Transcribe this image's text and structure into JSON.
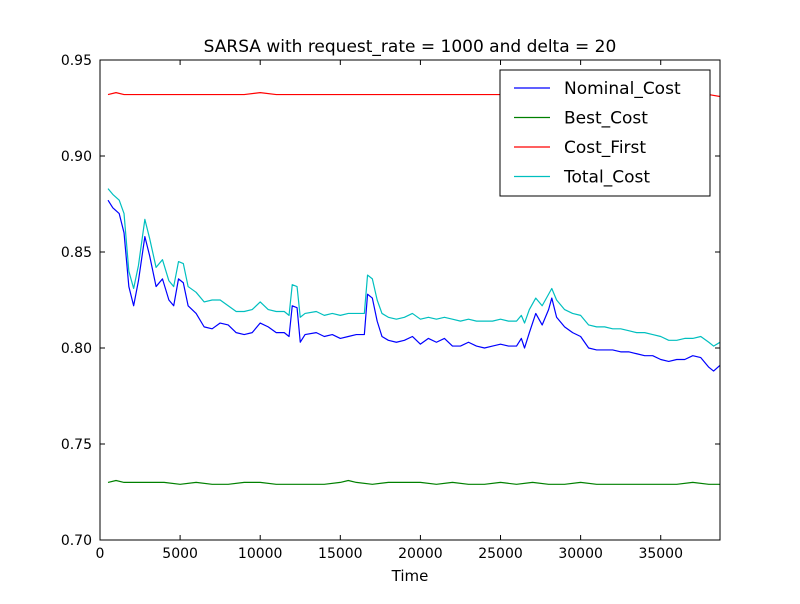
{
  "chart_data": {
    "type": "line",
    "title": "SARSA with request_rate = 1000 and delta = 20",
    "xlabel": "Time",
    "ylabel": "",
    "xlim": [
      0,
      38700
    ],
    "ylim": [
      0.7,
      0.95
    ],
    "x_ticks": [
      0,
      5000,
      10000,
      15000,
      20000,
      25000,
      30000,
      35000
    ],
    "y_ticks": [
      0.7,
      0.75,
      0.8,
      0.85,
      0.9,
      0.95
    ],
    "x_tick_labels": [
      "0",
      "5000",
      "10000",
      "15000",
      "20000",
      "25000",
      "30000",
      "35000"
    ],
    "y_tick_labels": [
      "0.70",
      "0.75",
      "0.80",
      "0.85",
      "0.90",
      "0.95"
    ],
    "grid": false,
    "legend_position": "top-right",
    "series": [
      {
        "name": "Nominal_Cost",
        "color": "#0000ff",
        "points": [
          [
            500,
            0.877
          ],
          [
            800,
            0.873
          ],
          [
            1200,
            0.87
          ],
          [
            1500,
            0.86
          ],
          [
            1800,
            0.832
          ],
          [
            2100,
            0.822
          ],
          [
            2400,
            0.835
          ],
          [
            2800,
            0.858
          ],
          [
            3100,
            0.848
          ],
          [
            3500,
            0.832
          ],
          [
            3900,
            0.836
          ],
          [
            4300,
            0.825
          ],
          [
            4600,
            0.822
          ],
          [
            4900,
            0.836
          ],
          [
            5200,
            0.834
          ],
          [
            5500,
            0.822
          ],
          [
            6000,
            0.818
          ],
          [
            6500,
            0.811
          ],
          [
            7000,
            0.81
          ],
          [
            7500,
            0.813
          ],
          [
            8000,
            0.812
          ],
          [
            8500,
            0.808
          ],
          [
            9000,
            0.807
          ],
          [
            9500,
            0.808
          ],
          [
            10000,
            0.813
          ],
          [
            10500,
            0.811
          ],
          [
            11000,
            0.808
          ],
          [
            11500,
            0.808
          ],
          [
            11800,
            0.806
          ],
          [
            12000,
            0.822
          ],
          [
            12300,
            0.821
          ],
          [
            12500,
            0.803
          ],
          [
            12800,
            0.807
          ],
          [
            13500,
            0.808
          ],
          [
            14000,
            0.806
          ],
          [
            14500,
            0.807
          ],
          [
            15000,
            0.805
          ],
          [
            15500,
            0.806
          ],
          [
            16000,
            0.807
          ],
          [
            16500,
            0.807
          ],
          [
            16700,
            0.828
          ],
          [
            17000,
            0.826
          ],
          [
            17300,
            0.814
          ],
          [
            17600,
            0.806
          ],
          [
            18000,
            0.804
          ],
          [
            18500,
            0.803
          ],
          [
            19000,
            0.804
          ],
          [
            19500,
            0.806
          ],
          [
            20000,
            0.802
          ],
          [
            20500,
            0.805
          ],
          [
            21000,
            0.803
          ],
          [
            21500,
            0.805
          ],
          [
            22000,
            0.801
          ],
          [
            22500,
            0.801
          ],
          [
            23000,
            0.803
          ],
          [
            23500,
            0.801
          ],
          [
            24000,
            0.8
          ],
          [
            24500,
            0.801
          ],
          [
            25000,
            0.802
          ],
          [
            25500,
            0.801
          ],
          [
            26000,
            0.801
          ],
          [
            26300,
            0.805
          ],
          [
            26500,
            0.8
          ],
          [
            26800,
            0.808
          ],
          [
            27200,
            0.818
          ],
          [
            27600,
            0.812
          ],
          [
            28000,
            0.82
          ],
          [
            28200,
            0.826
          ],
          [
            28500,
            0.816
          ],
          [
            29000,
            0.811
          ],
          [
            29500,
            0.808
          ],
          [
            30000,
            0.806
          ],
          [
            30500,
            0.8
          ],
          [
            31000,
            0.799
          ],
          [
            31500,
            0.799
          ],
          [
            32000,
            0.799
          ],
          [
            32500,
            0.798
          ],
          [
            33000,
            0.798
          ],
          [
            33500,
            0.797
          ],
          [
            34000,
            0.796
          ],
          [
            34500,
            0.796
          ],
          [
            35000,
            0.794
          ],
          [
            35500,
            0.793
          ],
          [
            36000,
            0.794
          ],
          [
            36500,
            0.794
          ],
          [
            37000,
            0.796
          ],
          [
            37500,
            0.795
          ],
          [
            38000,
            0.79
          ],
          [
            38300,
            0.788
          ],
          [
            38700,
            0.791
          ]
        ]
      },
      {
        "name": "Best_Cost",
        "color": "#008000",
        "points": [
          [
            500,
            0.73
          ],
          [
            1000,
            0.731
          ],
          [
            1500,
            0.73
          ],
          [
            2000,
            0.73
          ],
          [
            3000,
            0.73
          ],
          [
            4000,
            0.73
          ],
          [
            5000,
            0.729
          ],
          [
            6000,
            0.73
          ],
          [
            7000,
            0.729
          ],
          [
            8000,
            0.729
          ],
          [
            9000,
            0.73
          ],
          [
            10000,
            0.73
          ],
          [
            11000,
            0.729
          ],
          [
            12000,
            0.729
          ],
          [
            13000,
            0.729
          ],
          [
            14000,
            0.729
          ],
          [
            15000,
            0.73
          ],
          [
            15500,
            0.731
          ],
          [
            16000,
            0.73
          ],
          [
            17000,
            0.729
          ],
          [
            18000,
            0.73
          ],
          [
            19000,
            0.73
          ],
          [
            20000,
            0.73
          ],
          [
            21000,
            0.729
          ],
          [
            22000,
            0.73
          ],
          [
            23000,
            0.729
          ],
          [
            24000,
            0.729
          ],
          [
            25000,
            0.73
          ],
          [
            26000,
            0.729
          ],
          [
            27000,
            0.73
          ],
          [
            28000,
            0.729
          ],
          [
            29000,
            0.729
          ],
          [
            30000,
            0.73
          ],
          [
            31000,
            0.729
          ],
          [
            32000,
            0.729
          ],
          [
            33000,
            0.729
          ],
          [
            34000,
            0.729
          ],
          [
            35000,
            0.729
          ],
          [
            36000,
            0.729
          ],
          [
            37000,
            0.73
          ],
          [
            38000,
            0.729
          ],
          [
            38700,
            0.729
          ]
        ]
      },
      {
        "name": "Cost_First",
        "color": "#ff0000",
        "points": [
          [
            500,
            0.932
          ],
          [
            1000,
            0.933
          ],
          [
            1500,
            0.932
          ],
          [
            2000,
            0.932
          ],
          [
            3000,
            0.932
          ],
          [
            4000,
            0.932
          ],
          [
            5000,
            0.932
          ],
          [
            6000,
            0.932
          ],
          [
            7000,
            0.932
          ],
          [
            8000,
            0.932
          ],
          [
            9000,
            0.932
          ],
          [
            10000,
            0.933
          ],
          [
            11000,
            0.932
          ],
          [
            12000,
            0.932
          ],
          [
            13000,
            0.932
          ],
          [
            14000,
            0.932
          ],
          [
            15000,
            0.932
          ],
          [
            16000,
            0.932
          ],
          [
            17000,
            0.932
          ],
          [
            18000,
            0.932
          ],
          [
            19000,
            0.932
          ],
          [
            20000,
            0.932
          ],
          [
            21000,
            0.932
          ],
          [
            22000,
            0.932
          ],
          [
            23000,
            0.932
          ],
          [
            24000,
            0.932
          ],
          [
            25000,
            0.932
          ],
          [
            26000,
            0.932
          ],
          [
            27000,
            0.932
          ],
          [
            28000,
            0.932
          ],
          [
            29000,
            0.932
          ],
          [
            30000,
            0.932
          ],
          [
            31000,
            0.932
          ],
          [
            32000,
            0.932
          ],
          [
            33000,
            0.932
          ],
          [
            34000,
            0.932
          ],
          [
            35000,
            0.932
          ],
          [
            36000,
            0.932
          ],
          [
            37000,
            0.932
          ],
          [
            38000,
            0.932
          ],
          [
            38700,
            0.931
          ]
        ]
      },
      {
        "name": "Total_Cost",
        "color": "#00bfbf",
        "points": [
          [
            500,
            0.883
          ],
          [
            800,
            0.88
          ],
          [
            1200,
            0.877
          ],
          [
            1500,
            0.87
          ],
          [
            1800,
            0.84
          ],
          [
            2100,
            0.831
          ],
          [
            2400,
            0.843
          ],
          [
            2800,
            0.867
          ],
          [
            3100,
            0.857
          ],
          [
            3500,
            0.842
          ],
          [
            3900,
            0.846
          ],
          [
            4300,
            0.835
          ],
          [
            4600,
            0.832
          ],
          [
            4900,
            0.845
          ],
          [
            5200,
            0.844
          ],
          [
            5500,
            0.832
          ],
          [
            6000,
            0.829
          ],
          [
            6500,
            0.824
          ],
          [
            7000,
            0.825
          ],
          [
            7500,
            0.825
          ],
          [
            8000,
            0.822
          ],
          [
            8500,
            0.819
          ],
          [
            9000,
            0.819
          ],
          [
            9500,
            0.82
          ],
          [
            10000,
            0.824
          ],
          [
            10500,
            0.82
          ],
          [
            11000,
            0.819
          ],
          [
            11500,
            0.819
          ],
          [
            11800,
            0.817
          ],
          [
            12000,
            0.833
          ],
          [
            12300,
            0.832
          ],
          [
            12500,
            0.816
          ],
          [
            12800,
            0.818
          ],
          [
            13500,
            0.819
          ],
          [
            14000,
            0.817
          ],
          [
            14500,
            0.818
          ],
          [
            15000,
            0.817
          ],
          [
            15500,
            0.818
          ],
          [
            16000,
            0.818
          ],
          [
            16500,
            0.818
          ],
          [
            16700,
            0.838
          ],
          [
            17000,
            0.836
          ],
          [
            17300,
            0.825
          ],
          [
            17600,
            0.818
          ],
          [
            18000,
            0.816
          ],
          [
            18500,
            0.815
          ],
          [
            19000,
            0.816
          ],
          [
            19500,
            0.818
          ],
          [
            20000,
            0.815
          ],
          [
            20500,
            0.816
          ],
          [
            21000,
            0.815
          ],
          [
            21500,
            0.816
          ],
          [
            22000,
            0.815
          ],
          [
            22500,
            0.814
          ],
          [
            23000,
            0.815
          ],
          [
            23500,
            0.814
          ],
          [
            24000,
            0.814
          ],
          [
            24500,
            0.814
          ],
          [
            25000,
            0.815
          ],
          [
            25500,
            0.814
          ],
          [
            26000,
            0.814
          ],
          [
            26300,
            0.817
          ],
          [
            26500,
            0.813
          ],
          [
            26800,
            0.82
          ],
          [
            27200,
            0.826
          ],
          [
            27600,
            0.822
          ],
          [
            28000,
            0.828
          ],
          [
            28200,
            0.831
          ],
          [
            28500,
            0.825
          ],
          [
            29000,
            0.82
          ],
          [
            29500,
            0.818
          ],
          [
            30000,
            0.817
          ],
          [
            30500,
            0.812
          ],
          [
            31000,
            0.811
          ],
          [
            31500,
            0.811
          ],
          [
            32000,
            0.81
          ],
          [
            32500,
            0.81
          ],
          [
            33000,
            0.809
          ],
          [
            33500,
            0.808
          ],
          [
            34000,
            0.808
          ],
          [
            34500,
            0.807
          ],
          [
            35000,
            0.806
          ],
          [
            35500,
            0.804
          ],
          [
            36000,
            0.804
          ],
          [
            36500,
            0.805
          ],
          [
            37000,
            0.805
          ],
          [
            37500,
            0.806
          ],
          [
            38000,
            0.803
          ],
          [
            38300,
            0.801
          ],
          [
            38700,
            0.803
          ]
        ]
      }
    ]
  }
}
